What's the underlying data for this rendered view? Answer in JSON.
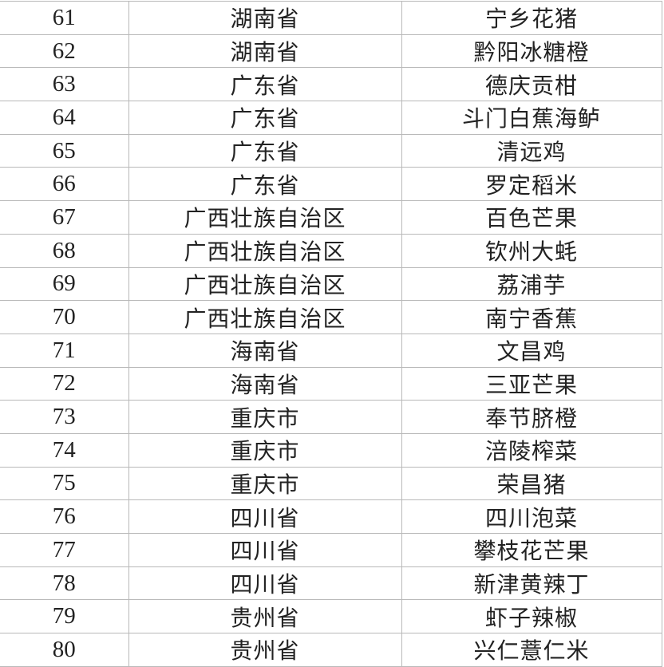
{
  "rows": [
    {
      "no": "61",
      "province": "湖南省",
      "product": "宁乡花猪"
    },
    {
      "no": "62",
      "province": "湖南省",
      "product": "黔阳冰糖橙"
    },
    {
      "no": "63",
      "province": "广东省",
      "product": "德庆贡柑"
    },
    {
      "no": "64",
      "province": "广东省",
      "product": "斗门白蕉海鲈"
    },
    {
      "no": "65",
      "province": "广东省",
      "product": "清远鸡"
    },
    {
      "no": "66",
      "province": "广东省",
      "product": "罗定稻米"
    },
    {
      "no": "67",
      "province": "广西壮族自治区",
      "product": "百色芒果"
    },
    {
      "no": "68",
      "province": "广西壮族自治区",
      "product": "钦州大蚝"
    },
    {
      "no": "69",
      "province": "广西壮族自治区",
      "product": "荔浦芋"
    },
    {
      "no": "70",
      "province": "广西壮族自治区",
      "product": "南宁香蕉"
    },
    {
      "no": "71",
      "province": "海南省",
      "product": "文昌鸡"
    },
    {
      "no": "72",
      "province": "海南省",
      "product": "三亚芒果"
    },
    {
      "no": "73",
      "province": "重庆市",
      "product": "奉节脐橙"
    },
    {
      "no": "74",
      "province": "重庆市",
      "product": "涪陵榨菜"
    },
    {
      "no": "75",
      "province": "重庆市",
      "product": "荣昌猪"
    },
    {
      "no": "76",
      "province": "四川省",
      "product": "四川泡菜"
    },
    {
      "no": "77",
      "province": "四川省",
      "product": "攀枝花芒果"
    },
    {
      "no": "78",
      "province": "四川省",
      "product": "新津黄辣丁"
    },
    {
      "no": "79",
      "province": "贵州省",
      "product": "虾子辣椒"
    },
    {
      "no": "80",
      "province": "贵州省",
      "product": "兴仁薏仁米"
    }
  ]
}
